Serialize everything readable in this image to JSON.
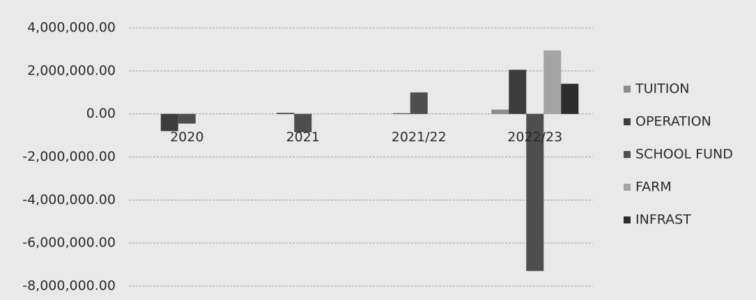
{
  "chart_data": {
    "type": "bar",
    "categories": [
      "2020",
      "2021",
      "2021/22",
      "2022/23"
    ],
    "series": [
      {
        "name": "TUITION",
        "color": "#8c8c8c",
        "values": [
          0,
          0,
          0,
          200000
        ]
      },
      {
        "name": "OPERATION",
        "color": "#3c3c3c",
        "values": [
          -800000,
          50000,
          30000,
          2050000
        ]
      },
      {
        "name": "SCHOOL FUND",
        "color": "#4e4e4e",
        "values": [
          -450000,
          -850000,
          1000000,
          -7300000
        ]
      },
      {
        "name": "FARM",
        "color": "#a4a4a4",
        "values": [
          0,
          0,
          0,
          2950000
        ]
      },
      {
        "name": "INFRAST",
        "color": "#2c2c2c",
        "values": [
          0,
          0,
          0,
          1400000
        ]
      }
    ],
    "ylim": [
      -8000000,
      4000000
    ],
    "yticks": [
      {
        "value": -8000000,
        "label": "-8,000,000.00"
      },
      {
        "value": -6000000,
        "label": "-6,000,000.00"
      },
      {
        "value": -4000000,
        "label": "-4,000,000.00"
      },
      {
        "value": -2000000,
        "label": "-2,000,000.00"
      },
      {
        "value": 0,
        "label": "0.00"
      },
      {
        "value": 2000000,
        "label": "2,000,000.00"
      },
      {
        "value": 4000000,
        "label": "4,000,000.00"
      }
    ],
    "grid": true,
    "legend": "right"
  }
}
